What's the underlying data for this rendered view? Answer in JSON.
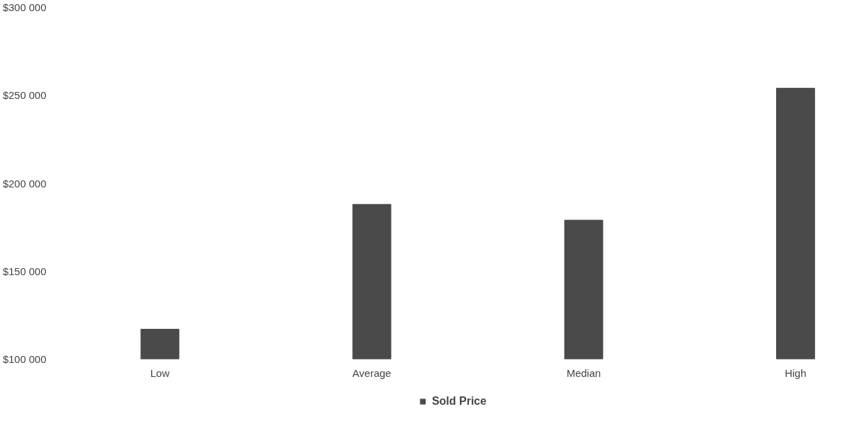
{
  "chart_data": {
    "type": "bar",
    "categories": [
      "Low",
      "Average",
      "Median",
      "High"
    ],
    "series": [
      {
        "name": "Sold Price",
        "color": "#4a4a4a",
        "values": [
          117000,
          188000,
          179000,
          254000
        ]
      }
    ],
    "ylim": [
      100000,
      300000
    ],
    "yticks": [
      {
        "value": 100000,
        "label": "$100 000"
      },
      {
        "value": 150000,
        "label": "$150 000"
      },
      {
        "value": 200000,
        "label": "$200 000"
      },
      {
        "value": 250000,
        "label": "$250 000"
      },
      {
        "value": 300000,
        "label": "$300 000"
      }
    ],
    "grid": false,
    "legend": "bottom"
  }
}
